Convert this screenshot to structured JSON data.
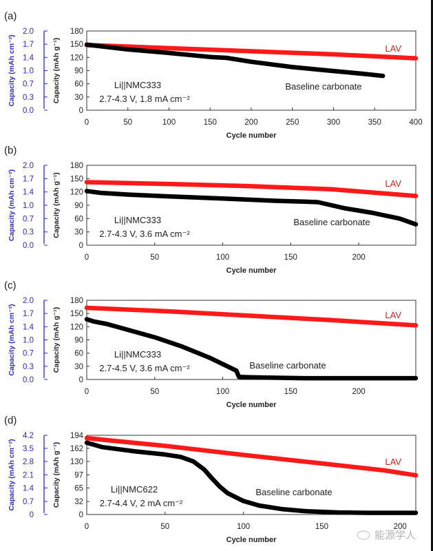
{
  "figure": {
    "watermark": "能源学人",
    "colors": {
      "lav": "#ff1a1a",
      "baseline": "#000000",
      "areal_axis": "#2b2bbf",
      "text": "#1a1a1a",
      "lav_label": "#cc2222"
    }
  },
  "chart_data": [
    {
      "type": "scatter",
      "panel_label": "(a)",
      "xlabel": "Cycle number",
      "ylabel": "Capacity (mAh g⁻¹)",
      "ylabel_secondary": "Capacity (mAh cm⁻²)",
      "xlim": [
        0,
        400
      ],
      "ylim": [
        0,
        180
      ],
      "x_ticks": [
        0,
        50,
        100,
        150,
        200,
        250,
        300,
        350,
        400
      ],
      "y_ticks": [
        0,
        30,
        60,
        90,
        120,
        150,
        180
      ],
      "y2_ticks": [
        "0.0",
        "0.3",
        "0.7",
        "1.0",
        "1.4",
        "1.7",
        "2.0"
      ],
      "annotation_cell": "Li||NMC333",
      "annotation_cond": "2.7-4.3 V, 1.8 mA cm⁻²",
      "series": [
        {
          "name": "LAV",
          "x": [
            0,
            100,
            200,
            300,
            400
          ],
          "y": [
            148,
            141,
            134,
            127,
            118
          ]
        },
        {
          "name": "Baseline carbonate",
          "x": [
            0,
            50,
            100,
            150,
            170,
            200,
            250,
            300,
            340,
            360
          ],
          "y": [
            149,
            138,
            130,
            121,
            119,
            110,
            98,
            89,
            82,
            78
          ]
        }
      ],
      "legend": {
        "LAV": "right-upper",
        "Baseline carbonate": "right-lower"
      }
    },
    {
      "type": "scatter",
      "panel_label": "(b)",
      "xlabel": "Cycle number",
      "ylabel": "Capacity (mAh g⁻¹)",
      "ylabel_secondary": "Capacity (mAh cm⁻²)",
      "xlim": [
        0,
        242
      ],
      "ylim": [
        0,
        180
      ],
      "x_ticks": [
        0,
        50,
        100,
        150,
        200
      ],
      "y_ticks": [
        0,
        30,
        60,
        90,
        120,
        150,
        180
      ],
      "y2_ticks": [
        "0.0",
        "0.3",
        "0.7",
        "1.0",
        "1.4",
        "1.7",
        "2.0"
      ],
      "annotation_cell": "Li||NMC333",
      "annotation_cond": "2.7-4.3 V, 3.6 mA cm⁻²",
      "series": [
        {
          "name": "LAV",
          "x": [
            0,
            60,
            120,
            180,
            242
          ],
          "y": [
            142,
            138,
            133,
            126,
            111
          ]
        },
        {
          "name": "Baseline carbonate",
          "x": [
            0,
            10,
            30,
            60,
            100,
            140,
            160,
            170,
            190,
            210,
            230,
            242
          ],
          "y": [
            122,
            118,
            114,
            110,
            105,
            100,
            98,
            97,
            83,
            73,
            60,
            47
          ]
        }
      ],
      "legend": {
        "LAV": "right-upper",
        "Baseline carbonate": "right-lower"
      }
    },
    {
      "type": "scatter",
      "panel_label": "(c)",
      "xlabel": "Cycle number",
      "ylabel": "Capacity (mAh g⁻¹)",
      "ylabel_secondary": "Capacity (mAh cm⁻²)",
      "xlim": [
        0,
        242
      ],
      "ylim": [
        0,
        180
      ],
      "x_ticks": [
        0,
        50,
        100,
        150,
        200
      ],
      "y_ticks": [
        0,
        30,
        60,
        90,
        120,
        150,
        180
      ],
      "y2_ticks": [
        "0.0",
        "0.3",
        "0.7",
        "1.0",
        "1.4",
        "1.7",
        "2.0"
      ],
      "annotation_cell": "Li||NMC333",
      "annotation_cond": "2.7-4.5 V, 3.6 mA cm⁻²",
      "series": [
        {
          "name": "LAV",
          "x": [
            0,
            60,
            120,
            180,
            242
          ],
          "y": [
            163,
            155,
            145,
            135,
            123
          ]
        },
        {
          "name": "Baseline carbonate",
          "x": [
            0,
            5,
            15,
            30,
            50,
            70,
            90,
            100,
            110,
            112,
            120,
            160,
            200,
            242
          ],
          "y": [
            137,
            132,
            126,
            113,
            96,
            75,
            50,
            35,
            20,
            6,
            5,
            3,
            3,
            3
          ]
        }
      ],
      "legend": {
        "LAV": "right-upper",
        "Baseline carbonate": "center-lower"
      }
    },
    {
      "type": "scatter",
      "panel_label": "(d)",
      "xlabel": "Cycle number",
      "ylabel": "Capacity (mAh g⁻¹)",
      "ylabel_secondary": "Capacity (mAh cm⁻²)",
      "xlim": [
        0,
        210
      ],
      "ylim": [
        0,
        194
      ],
      "x_ticks": [
        0,
        50,
        100,
        150,
        200
      ],
      "y_ticks": [
        0,
        32,
        65,
        97,
        130,
        162,
        194
      ],
      "y2_ticks": [
        "0",
        "0.7",
        "1.4",
        "2.1",
        "2.8",
        "3.5",
        "4.2"
      ],
      "annotation_cell": "Li||NMC622",
      "annotation_cond": "2.7-4.4 V, 2 mA cm⁻²",
      "series": [
        {
          "name": "LAV",
          "x": [
            0,
            50,
            100,
            150,
            190,
            210
          ],
          "y": [
            187,
            168,
            146,
            125,
            108,
            96
          ]
        },
        {
          "name": "Baseline carbonate",
          "x": [
            0,
            10,
            30,
            50,
            60,
            68,
            75,
            80,
            85,
            90,
            100,
            110,
            125,
            140,
            160,
            180,
            210
          ],
          "y": [
            176,
            165,
            155,
            147,
            141,
            130,
            110,
            88,
            68,
            52,
            33,
            22,
            13,
            8,
            5,
            4,
            4
          ]
        }
      ],
      "legend": {
        "LAV": "right-upper",
        "Baseline carbonate": "right-center"
      }
    }
  ]
}
